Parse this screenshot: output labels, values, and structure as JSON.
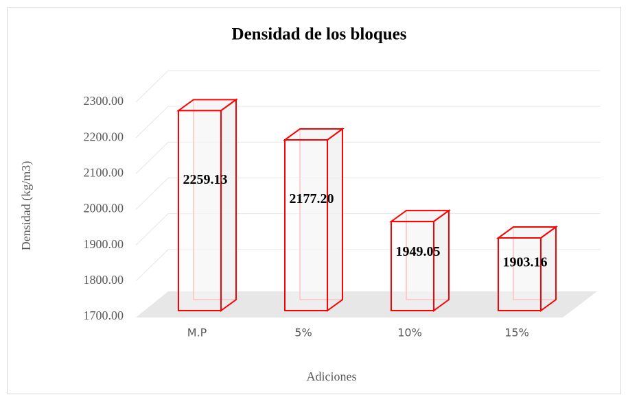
{
  "chart_data": {
    "type": "bar3d",
    "title": "Densidad de los bloques",
    "x_label": "Adiciones",
    "y_label": "Densidad (kg/m3)",
    "categories": [
      "M.P",
      "5%",
      "10%",
      "15%"
    ],
    "values": [
      2259.13,
      2177.2,
      1949.05,
      1903.16
    ],
    "value_labels": [
      "2259.13",
      "2177.20",
      "1949.05",
      "1903.16"
    ],
    "color": "#ff0000",
    "ylim": [
      1700,
      2300
    ],
    "yticks": [
      {
        "value": 1700,
        "label": "1700.00"
      },
      {
        "value": 1800,
        "label": "1800.00"
      },
      {
        "value": 1900,
        "label": "1900.00"
      },
      {
        "value": 2000,
        "label": "2000.00"
      },
      {
        "value": 2100,
        "label": "2100.00"
      },
      {
        "value": 2200,
        "label": "2200.00"
      },
      {
        "value": 2300,
        "label": "2300.00"
      }
    ],
    "grid": true
  }
}
